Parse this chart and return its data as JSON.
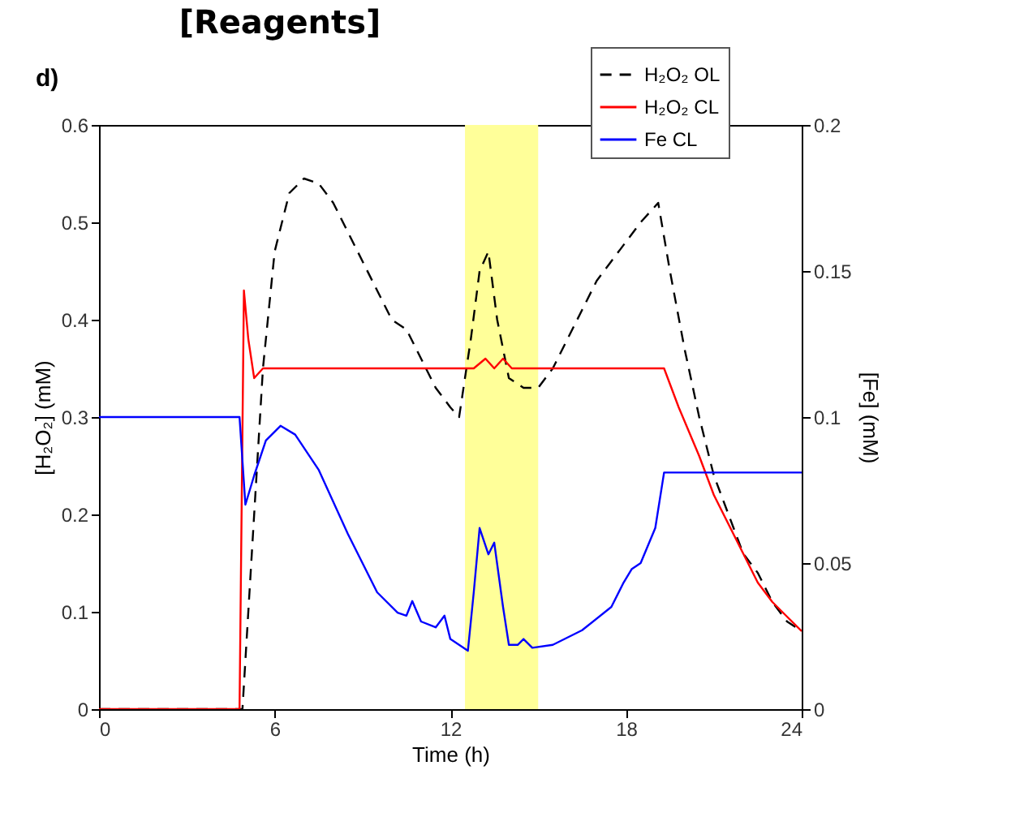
{
  "chart_data": {
    "type": "line",
    "title": "[Reagents]",
    "xlabel": "Time (h)",
    "ylabel": "[H₂O₂] (mM)",
    "y2label": "[Fe] (mM)",
    "annotations": [
      "d)"
    ],
    "xlim": [
      0,
      24
    ],
    "xticks": [
      0,
      6,
      12,
      18,
      24
    ],
    "ylim": [
      0,
      0.6
    ],
    "yticks": [
      0,
      0.1,
      0.2,
      0.3,
      0.4,
      0.5,
      0.6
    ],
    "y2lim": [
      0,
      0.2
    ],
    "y2ticks": [
      0,
      0.05,
      0.1,
      0.15,
      0.2
    ],
    "legend": "top right",
    "grid": false,
    "bands": [
      {
        "axis": "x",
        "from": 12.5,
        "to": 15,
        "color": "#ffff99"
      }
    ],
    "series": [
      {
        "name": "H₂O₂ OL",
        "color": "#000000",
        "line_style": "dashed",
        "x": [
          0,
          4.9,
          5.2,
          5.6,
          6,
          6.5,
          7,
          7.5,
          8,
          8.5,
          9,
          9.5,
          10,
          10.5,
          11,
          11.5,
          12,
          12.3,
          12.7,
          13,
          13.3,
          13.6,
          14,
          14.5,
          15,
          15.5,
          16,
          16.5,
          17,
          17.5,
          18,
          18.5,
          19.1,
          19.5,
          20,
          20.5,
          21,
          21.5,
          22,
          22.5,
          23,
          23.5,
          24
        ],
        "values": [
          0,
          0,
          0.15,
          0.35,
          0.47,
          0.53,
          0.545,
          0.54,
          0.52,
          0.49,
          0.46,
          0.43,
          0.4,
          0.39,
          0.36,
          0.33,
          0.31,
          0.3,
          0.38,
          0.45,
          0.47,
          0.4,
          0.34,
          0.33,
          0.33,
          0.35,
          0.38,
          0.41,
          0.44,
          0.46,
          0.48,
          0.5,
          0.52,
          0.45,
          0.37,
          0.3,
          0.24,
          0.2,
          0.16,
          0.14,
          0.11,
          0.09,
          0.08
        ]
      },
      {
        "name": "H₂O₂ CL",
        "color": "#ff0000",
        "line_style": "solid",
        "x": [
          0,
          4.8,
          4.95,
          5.1,
          5.3,
          5.6,
          12.8,
          13.2,
          13.5,
          13.8,
          14.1,
          14.6,
          19.3,
          19.8,
          20.5,
          21,
          21.5,
          22,
          22.5,
          23,
          23.5,
          24
        ],
        "values": [
          0,
          0,
          0.43,
          0.38,
          0.34,
          0.35,
          0.35,
          0.36,
          0.35,
          0.36,
          0.35,
          0.35,
          0.35,
          0.31,
          0.26,
          0.22,
          0.19,
          0.16,
          0.13,
          0.11,
          0.095,
          0.08
        ]
      },
      {
        "name": "Fe CL",
        "color": "#0000ff",
        "line_style": "solid",
        "axis": "y2",
        "x": [
          0,
          4.8,
          5,
          5.3,
          5.7,
          6.2,
          6.7,
          7.5,
          8.5,
          9.5,
          10.2,
          10.5,
          10.7,
          11,
          11.5,
          11.8,
          12,
          12.6,
          12.8,
          13,
          13.3,
          13.5,
          13.8,
          14,
          14.3,
          14.5,
          14.8,
          15.5,
          16.5,
          17.5,
          17.9,
          18.2,
          18.5,
          19,
          19.3,
          24
        ],
        "values": [
          0.1,
          0.1,
          0.07,
          0.08,
          0.092,
          0.097,
          0.094,
          0.082,
          0.06,
          0.04,
          0.033,
          0.032,
          0.037,
          0.03,
          0.028,
          0.032,
          0.024,
          0.02,
          0.04,
          0.062,
          0.053,
          0.057,
          0.035,
          0.022,
          0.022,
          0.024,
          0.021,
          0.022,
          0.027,
          0.035,
          0.043,
          0.048,
          0.05,
          0.062,
          0.081,
          0.081
        ]
      }
    ]
  }
}
